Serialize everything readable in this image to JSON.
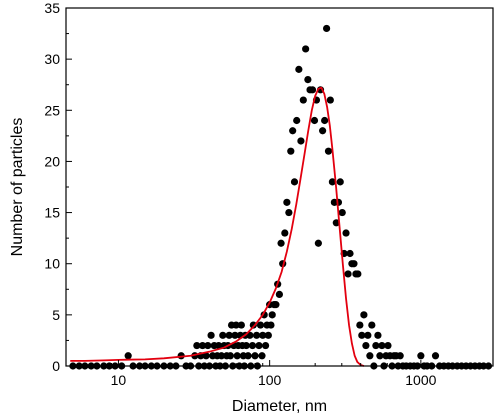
{
  "chart_data": {
    "type": "scatter",
    "xscale": "log",
    "xlim": [
      4.5,
      3000
    ],
    "ylim": [
      0,
      35
    ],
    "xlabel": "Diameter, nm",
    "ylabel": "Number of particles",
    "x_ticks": [
      10,
      100,
      1000
    ],
    "x_tick_labels": [
      "10",
      "100",
      "1000"
    ],
    "y_ticks": [
      0,
      5,
      10,
      15,
      20,
      25,
      30,
      35
    ],
    "y_tick_labels": [
      "0",
      "5",
      "10",
      "15",
      "20",
      "25",
      "30",
      "35"
    ],
    "grid": false,
    "legend": "none",
    "colors": {
      "points": "#000000",
      "fit": "#e3000f",
      "axes": "#000000"
    },
    "series": [
      {
        "kind": "points",
        "points": [
          [
            5,
            0
          ],
          [
            5.5,
            0
          ],
          [
            6,
            0
          ],
          [
            6.6,
            0
          ],
          [
            7.2,
            0
          ],
          [
            8,
            0
          ],
          [
            8.7,
            0
          ],
          [
            9.5,
            0
          ],
          [
            10.5,
            0
          ],
          [
            11.6,
            1
          ],
          [
            12.5,
            0
          ],
          [
            13.8,
            0
          ],
          [
            15,
            0
          ],
          [
            16.5,
            0
          ],
          [
            18,
            0
          ],
          [
            20,
            0
          ],
          [
            22,
            0
          ],
          [
            24,
            0
          ],
          [
            26,
            1
          ],
          [
            28,
            0
          ],
          [
            30,
            0
          ],
          [
            32,
            1
          ],
          [
            33,
            2
          ],
          [
            34,
            0
          ],
          [
            35,
            1
          ],
          [
            36,
            2
          ],
          [
            37,
            0
          ],
          [
            38,
            1
          ],
          [
            39,
            2
          ],
          [
            40,
            0
          ],
          [
            41,
            3
          ],
          [
            42,
            1
          ],
          [
            43,
            2
          ],
          [
            44,
            0
          ],
          [
            45,
            1
          ],
          [
            46,
            2
          ],
          [
            47,
            0
          ],
          [
            48,
            1
          ],
          [
            49,
            3
          ],
          [
            50,
            2
          ],
          [
            51,
            0
          ],
          [
            52,
            1
          ],
          [
            53,
            2
          ],
          [
            54,
            3
          ],
          [
            55,
            1
          ],
          [
            56,
            4
          ],
          [
            57,
            0
          ],
          [
            58,
            2
          ],
          [
            59,
            3
          ],
          [
            60,
            4
          ],
          [
            61,
            1
          ],
          [
            62,
            2
          ],
          [
            63,
            0
          ],
          [
            64,
            3
          ],
          [
            65,
            4
          ],
          [
            66,
            2
          ],
          [
            67,
            1
          ],
          [
            68,
            0
          ],
          [
            69,
            3
          ],
          [
            70,
            2
          ],
          [
            72,
            1
          ],
          [
            74,
            3
          ],
          [
            75,
            0
          ],
          [
            77,
            2
          ],
          [
            78,
            4
          ],
          [
            80,
            1
          ],
          [
            82,
            3
          ],
          [
            83,
            0
          ],
          [
            85,
            2
          ],
          [
            87,
            4
          ],
          [
            89,
            1
          ],
          [
            90,
            3
          ],
          [
            92,
            5
          ],
          [
            94,
            2
          ],
          [
            96,
            4
          ],
          [
            98,
            3
          ],
          [
            100,
            6
          ],
          [
            102,
            4
          ],
          [
            104,
            5
          ],
          [
            107,
            6
          ],
          [
            110,
            6
          ],
          [
            113,
            8
          ],
          [
            116,
            7
          ],
          [
            119,
            12
          ],
          [
            122,
            10
          ],
          [
            126,
            13
          ],
          [
            130,
            16
          ],
          [
            134,
            15
          ],
          [
            138,
            21
          ],
          [
            142,
            23
          ],
          [
            146,
            18
          ],
          [
            151,
            24
          ],
          [
            156,
            29
          ],
          [
            161,
            22
          ],
          [
            167,
            26
          ],
          [
            173,
            31
          ],
          [
            179,
            28
          ],
          [
            185,
            27
          ],
          [
            192,
            27
          ],
          [
            198,
            24
          ],
          [
            204,
            26
          ],
          [
            210,
            12
          ],
          [
            217,
            27
          ],
          [
            224,
            23
          ],
          [
            231,
            24
          ],
          [
            238,
            33
          ],
          [
            245,
            21
          ],
          [
            252,
            26
          ],
          [
            260,
            18
          ],
          [
            268,
            16
          ],
          [
            276,
            14
          ],
          [
            285,
            16
          ],
          [
            293,
            18
          ],
          [
            302,
            15
          ],
          [
            311,
            11
          ],
          [
            320,
            13
          ],
          [
            330,
            9
          ],
          [
            340,
            11
          ],
          [
            350,
            10
          ],
          [
            361,
            10
          ],
          [
            372,
            9
          ],
          [
            383,
            9
          ],
          [
            395,
            4
          ],
          [
            407,
            3
          ],
          [
            420,
            5
          ],
          [
            433,
            2
          ],
          [
            446,
            3
          ],
          [
            460,
            1
          ],
          [
            474,
            4
          ],
          [
            489,
            0
          ],
          [
            504,
            2
          ],
          [
            520,
            3
          ],
          [
            536,
            1
          ],
          [
            553,
            2
          ],
          [
            570,
            0
          ],
          [
            588,
            1
          ],
          [
            606,
            2
          ],
          [
            625,
            1
          ],
          [
            645,
            0
          ],
          [
            665,
            1
          ],
          [
            686,
            1
          ],
          [
            707,
            0
          ],
          [
            730,
            1
          ],
          [
            760,
            0
          ],
          [
            800,
            0
          ],
          [
            850,
            0
          ],
          [
            900,
            0
          ],
          [
            950,
            0
          ],
          [
            1000,
            1
          ],
          [
            1050,
            0
          ],
          [
            1100,
            0
          ],
          [
            1180,
            0
          ],
          [
            1250,
            1
          ],
          [
            1330,
            0
          ],
          [
            1420,
            0
          ],
          [
            1520,
            0
          ],
          [
            1620,
            0
          ],
          [
            1740,
            0
          ],
          [
            1860,
            0
          ],
          [
            1990,
            0
          ],
          [
            2130,
            0
          ],
          [
            2280,
            0
          ],
          [
            2440,
            0
          ],
          [
            2600,
            0
          ],
          [
            2800,
            0
          ]
        ]
      },
      {
        "kind": "fit-line",
        "points": [
          [
            4.8,
            0.5
          ],
          [
            6,
            0.5
          ],
          [
            8,
            0.55
          ],
          [
            10,
            0.6
          ],
          [
            15,
            0.65
          ],
          [
            20,
            0.75
          ],
          [
            30,
            1.0
          ],
          [
            40,
            1.4
          ],
          [
            50,
            1.8
          ],
          [
            60,
            2.4
          ],
          [
            70,
            3.1
          ],
          [
            80,
            4.0
          ],
          [
            90,
            5.0
          ],
          [
            100,
            6.2
          ],
          [
            110,
            7.6
          ],
          [
            120,
            9.2
          ],
          [
            130,
            11.2
          ],
          [
            140,
            13.4
          ],
          [
            150,
            15.8
          ],
          [
            160,
            18.3
          ],
          [
            170,
            20.7
          ],
          [
            180,
            23.0
          ],
          [
            190,
            25.0
          ],
          [
            200,
            26.4
          ],
          [
            210,
            27.1
          ],
          [
            220,
            27.2
          ],
          [
            230,
            26.6
          ],
          [
            240,
            25.3
          ],
          [
            250,
            23.5
          ],
          [
            260,
            21.2
          ],
          [
            275,
            17.5
          ],
          [
            290,
            13.6
          ],
          [
            305,
            9.9
          ],
          [
            320,
            6.6
          ],
          [
            335,
            4.0
          ],
          [
            350,
            2.2
          ],
          [
            365,
            1.0
          ],
          [
            380,
            0.4
          ],
          [
            400,
            0.1
          ],
          [
            420,
            0
          ]
        ]
      }
    ]
  }
}
